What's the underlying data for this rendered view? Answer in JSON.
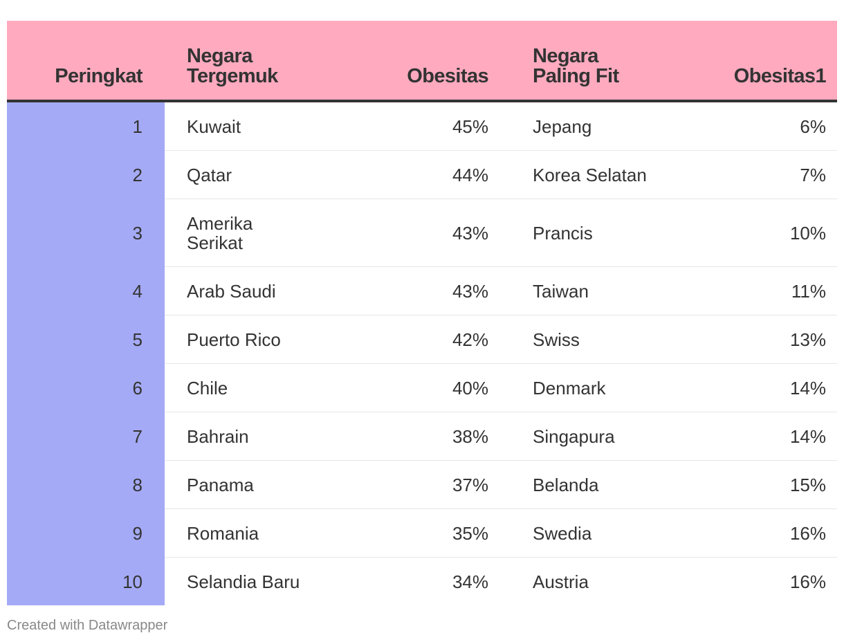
{
  "chart_data": {
    "type": "table",
    "columns": [
      "Peringkat",
      "Negara Tergemuk",
      "Obesitas",
      "Negara Paling Fit",
      "Obesitas1"
    ],
    "header_colors": {
      "header_background": "#ffaabf",
      "rank_column_background": "#a4aaf5",
      "text": "#333333"
    },
    "rows": [
      {
        "rank": "1",
        "fattest": "Kuwait",
        "fattest_obesity": "45%",
        "fittest": "Jepang",
        "fittest_obesity": "6%"
      },
      {
        "rank": "2",
        "fattest": "Qatar",
        "fattest_obesity": "44%",
        "fittest": "Korea Selatan",
        "fittest_obesity": "7%"
      },
      {
        "rank": "3",
        "fattest": "Amerika Serikat",
        "fattest_obesity": "43%",
        "fittest": "Prancis",
        "fittest_obesity": "10%"
      },
      {
        "rank": "4",
        "fattest": "Arab Saudi",
        "fattest_obesity": "43%",
        "fittest": "Taiwan",
        "fittest_obesity": "11%"
      },
      {
        "rank": "5",
        "fattest": "Puerto Rico",
        "fattest_obesity": "42%",
        "fittest": "Swiss",
        "fittest_obesity": "13%"
      },
      {
        "rank": "6",
        "fattest": "Chile",
        "fattest_obesity": "40%",
        "fittest": "Denmark",
        "fittest_obesity": "14%"
      },
      {
        "rank": "7",
        "fattest": "Bahrain",
        "fattest_obesity": "38%",
        "fittest": "Singapura",
        "fittest_obesity": "14%"
      },
      {
        "rank": "8",
        "fattest": "Panama",
        "fattest_obesity": "37%",
        "fittest": "Belanda",
        "fittest_obesity": "15%"
      },
      {
        "rank": "9",
        "fattest": "Romania",
        "fattest_obesity": "35%",
        "fittest": "Swedia",
        "fittest_obesity": "16%"
      },
      {
        "rank": "10",
        "fattest": "Selandia Baru",
        "fattest_obesity": "34%",
        "fittest": "Austria",
        "fittest_obesity": "16%"
      }
    ]
  },
  "header": {
    "rank": "Peringkat",
    "fattest_line1": "Negara",
    "fattest_line2": "Tergemuk",
    "fattest_obesity": "Obesitas",
    "fittest_line1": "Negara",
    "fittest_line2": "Paling Fit",
    "fittest_obesity": "Obesitas1"
  },
  "footer": {
    "credit": "Created with Datawrapper"
  }
}
